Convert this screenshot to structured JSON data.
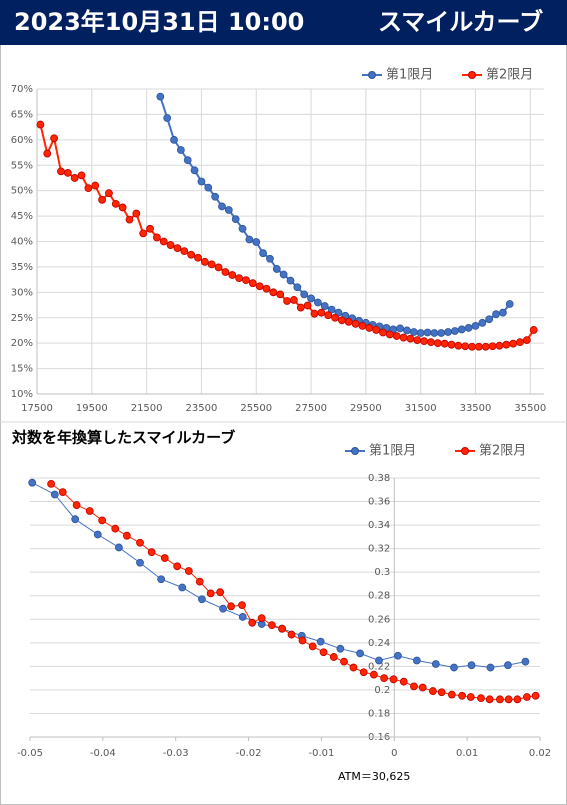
{
  "header": {
    "title": "2023年10月31日 10:00",
    "subtitle": "スマイルカーブ"
  },
  "chart_data": [
    {
      "type": "line",
      "xlim": [
        17500,
        36000
      ],
      "xticks": [
        17500,
        19500,
        21500,
        23500,
        25500,
        27500,
        29500,
        31500,
        33500,
        35500
      ],
      "ylim": [
        10,
        70
      ],
      "yticks": [
        {
          "value": 10,
          "label": "10%"
        },
        {
          "value": 15,
          "label": "15%"
        },
        {
          "value": 20,
          "label": "20%"
        },
        {
          "value": 25,
          "label": "25%"
        },
        {
          "value": 30,
          "label": "30%"
        },
        {
          "value": 35,
          "label": "35%"
        },
        {
          "value": 40,
          "label": "40%"
        },
        {
          "value": 45,
          "label": "45%"
        },
        {
          "value": 50,
          "label": "50%"
        },
        {
          "value": 55,
          "label": "55%"
        },
        {
          "value": 60,
          "label": "60%"
        },
        {
          "value": 65,
          "label": "65%"
        },
        {
          "value": 70,
          "label": "70%"
        }
      ],
      "grid": true,
      "series": [
        {
          "name": "第1限月",
          "color": "#4472c4",
          "x": [
            22000,
            22250,
            22500,
            22750,
            23000,
            23250,
            23500,
            23750,
            24000,
            24250,
            24500,
            24750,
            25000,
            25250,
            25500,
            25750,
            26000,
            26250,
            26500,
            26750,
            27000,
            27250,
            27500,
            27750,
            28000,
            28250,
            28500,
            28750,
            29000,
            29250,
            29500,
            29750,
            30000,
            30250,
            30500,
            30750,
            31000,
            31250,
            31500,
            31750,
            32000,
            32250,
            32500,
            32750,
            33000,
            33250,
            33500,
            33750,
            34000,
            34250,
            34500,
            34750
          ],
          "values": [
            68.5,
            64.3,
            60.0,
            58.0,
            56.0,
            54.0,
            51.8,
            50.6,
            48.8,
            46.9,
            46.2,
            44.4,
            42.5,
            40.4,
            39.9,
            37.7,
            36.6,
            34.6,
            33.5,
            32.3,
            31.0,
            29.6,
            28.8,
            28.0,
            27.3,
            26.6,
            26.0,
            25.4,
            24.9,
            24.4,
            24.0,
            23.6,
            23.3,
            23.0,
            22.7,
            22.9,
            22.5,
            22.2,
            22.0,
            22.1,
            22.0,
            22.0,
            22.2,
            22.4,
            22.7,
            23.0,
            23.4,
            24.0,
            24.7,
            25.7,
            26.0,
            27.7
          ]
        },
        {
          "name": "第2限月",
          "color": "#ff2600",
          "x": [
            17625,
            17875,
            18125,
            18375,
            18625,
            18875,
            19125,
            19375,
            19625,
            19875,
            20125,
            20375,
            20625,
            20875,
            21125,
            21375,
            21625,
            21875,
            22125,
            22375,
            22625,
            22875,
            23125,
            23375,
            23625,
            23875,
            24125,
            24375,
            24625,
            24875,
            25125,
            25375,
            25625,
            25875,
            26125,
            26375,
            26625,
            26875,
            27125,
            27375,
            27625,
            27875,
            28125,
            28375,
            28625,
            28875,
            29125,
            29375,
            29625,
            29875,
            30125,
            30375,
            30625,
            30875,
            31125,
            31375,
            31625,
            31875,
            32125,
            32375,
            32625,
            32875,
            33125,
            33375,
            33625,
            33875,
            34125,
            34375,
            34625,
            34875,
            35125,
            35375,
            35625
          ],
          "values": [
            63.0,
            57.3,
            60.3,
            53.8,
            53.5,
            52.5,
            53.0,
            50.5,
            51.0,
            48.2,
            49.5,
            47.4,
            46.7,
            44.3,
            45.5,
            41.6,
            42.5,
            40.8,
            40.0,
            39.3,
            38.7,
            38.1,
            37.4,
            36.8,
            36.0,
            35.5,
            34.9,
            34.0,
            33.4,
            32.8,
            32.4,
            31.8,
            31.2,
            30.7,
            30.0,
            29.6,
            28.3,
            28.5,
            27.0,
            27.4,
            25.8,
            26.0,
            25.5,
            25.0,
            24.5,
            24.2,
            23.8,
            23.4,
            23.0,
            22.6,
            22.1,
            21.7,
            21.4,
            21.1,
            20.9,
            20.6,
            20.4,
            20.2,
            20.0,
            19.9,
            19.7,
            19.5,
            19.4,
            19.3,
            19.3,
            19.3,
            19.4,
            19.5,
            19.7,
            19.9,
            20.2,
            20.6,
            22.6
          ]
        }
      ]
    },
    {
      "type": "line",
      "title": "対数を年換算したスマイルカーブ",
      "annotation": "ATM＝30,625",
      "xlim": [
        -0.05,
        0.02
      ],
      "xticks": [
        -0.05,
        -0.04,
        -0.03,
        -0.02,
        -0.01,
        0,
        0.01,
        0.02
      ],
      "ylim": [
        0.16,
        0.38
      ],
      "yticks": [
        0.16,
        0.18,
        0.2,
        0.22,
        0.24,
        0.26,
        0.28,
        0.3,
        0.32,
        0.34,
        0.36,
        0.38
      ],
      "grid": true,
      "series": [
        {
          "name": "第1限月",
          "color": "#4472c4",
          "x": [
            -0.0497,
            -0.0466,
            -0.0438,
            -0.0407,
            -0.0378,
            -0.0349,
            -0.032,
            -0.0291,
            -0.0264,
            -0.0235,
            -0.0208,
            -0.0182,
            -0.0154,
            -0.0127,
            -0.0101,
            -0.0074,
            -0.0047,
            -0.0021,
            0.0005,
            0.0031,
            0.0057,
            0.0082,
            0.0106,
            0.0132,
            0.0156,
            0.018
          ],
          "values": [
            0.376,
            0.366,
            0.345,
            0.332,
            0.321,
            0.308,
            0.294,
            0.287,
            0.277,
            0.269,
            0.262,
            0.256,
            0.252,
            0.246,
            0.241,
            0.235,
            0.231,
            0.225,
            0.229,
            0.225,
            0.222,
            0.219,
            0.221,
            0.219,
            0.221,
            0.224
          ]
        },
        {
          "name": "第2限月",
          "color": "#ff2600",
          "x": [
            -0.0471,
            -0.0455,
            -0.0436,
            -0.0418,
            -0.0401,
            -0.0383,
            -0.0367,
            -0.0349,
            -0.0333,
            -0.0315,
            -0.0298,
            -0.0282,
            -0.0267,
            -0.0252,
            -0.0239,
            -0.0224,
            -0.0209,
            -0.0195,
            -0.0182,
            -0.0168,
            -0.0154,
            -0.0141,
            -0.0126,
            -0.0112,
            -0.0097,
            -0.0083,
            -0.0069,
            -0.0056,
            -0.0042,
            -0.0028,
            -0.0014,
            -0.0001,
            0.0013,
            0.0027,
            0.0039,
            0.0053,
            0.0065,
            0.0079,
            0.0093,
            0.0105,
            0.0119,
            0.0131,
            0.0145,
            0.0157,
            0.0169,
            0.0182,
            0.0194
          ],
          "values": [
            0.375,
            0.368,
            0.357,
            0.352,
            0.344,
            0.337,
            0.331,
            0.325,
            0.317,
            0.312,
            0.305,
            0.301,
            0.292,
            0.282,
            0.283,
            0.271,
            0.272,
            0.257,
            0.261,
            0.255,
            0.252,
            0.247,
            0.242,
            0.237,
            0.232,
            0.228,
            0.224,
            0.219,
            0.215,
            0.213,
            0.21,
            0.209,
            0.207,
            0.203,
            0.202,
            0.199,
            0.198,
            0.196,
            0.195,
            0.194,
            0.193,
            0.192,
            0.192,
            0.192,
            0.192,
            0.194,
            0.195
          ]
        }
      ]
    }
  ]
}
